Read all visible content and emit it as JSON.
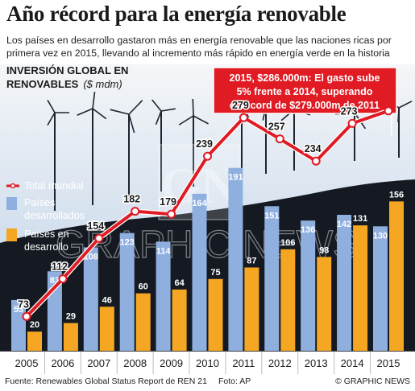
{
  "header": {
    "title": "Año récord para la energía renovable",
    "subtitle": "Los países en desarrollo gastaron más en energía renovable que las naciones ricas por primera vez en 2015, llevando al incremento más rápido en energía verde en la historia"
  },
  "colors": {
    "total_line": "#e01b24",
    "developed": "#8fb0df",
    "developing": "#f5a623",
    "sky_top": "#f4f6f8",
    "sky_bottom": "#b8cde6",
    "ground": "#151a22",
    "callout_bg": "#e01b24"
  },
  "callout": {
    "line1": "2015, $286.000m: El gasto sube",
    "line2": "5% frente a 2014, superando",
    "line3": "el récord de $279.000m de 2011"
  },
  "watermark": {
    "text": "GRAPHIC NEWS",
    "logo_text": "GN"
  },
  "chart_data": {
    "type": "bar",
    "title": "INVERSIÓN GLOBAL EN RENOVABLES",
    "unit": "($ mdm)",
    "categories": [
      "2005",
      "2006",
      "2007",
      "2008",
      "2009",
      "2010",
      "2011",
      "2012",
      "2013",
      "2014",
      "2015"
    ],
    "series": [
      {
        "name": "Países desarrollados",
        "type": "bar",
        "values": [
          53,
          83,
          108,
          123,
          114,
          164,
          191,
          151,
          136,
          142,
          130
        ]
      },
      {
        "name": "Países en desarrollo",
        "type": "bar",
        "values": [
          20,
          29,
          46,
          60,
          64,
          75,
          87,
          106,
          98,
          131,
          156
        ]
      },
      {
        "name": "Total mundial",
        "type": "line",
        "values": [
          73,
          112,
          154,
          182,
          179,
          239,
          279,
          257,
          234,
          273,
          286
        ]
      }
    ],
    "value_labels": {
      "total": [
        "73",
        "112",
        "154",
        "182",
        "179",
        "239",
        "279",
        "257",
        "234",
        "273",
        ""
      ]
    },
    "legend_position": "left",
    "grid": false
  },
  "footer": {
    "source": "Fuente: Renewables Global Status Report de REN 21",
    "photo": "Foto: AP",
    "credit": "© GRAPHIC NEWS"
  }
}
